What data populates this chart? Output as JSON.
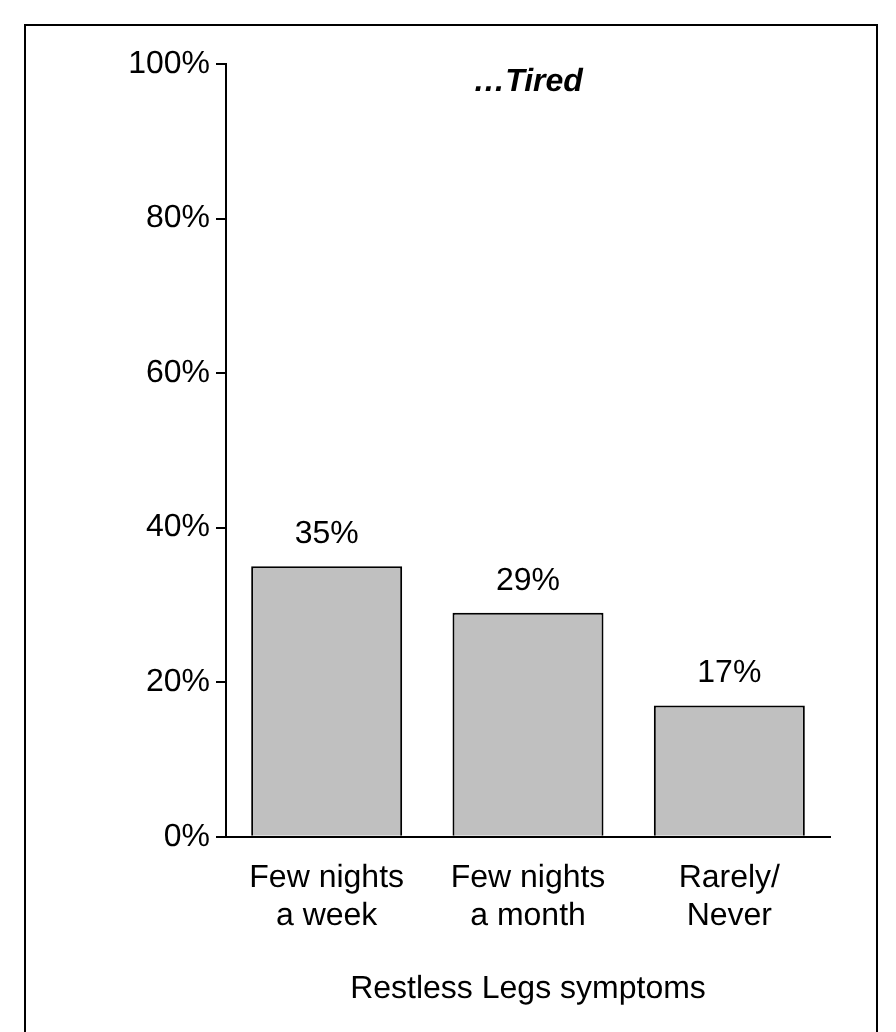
{
  "chart_data": {
    "type": "bar",
    "title": "…Tired",
    "xlabel": "Restless Legs symptoms",
    "categories": [
      "Few nights a week",
      "Few nights a month",
      "Rarely/ Never"
    ],
    "values": [
      35,
      29,
      17
    ],
    "color": "#c0c0c0",
    "ylim": [
      0,
      100
    ],
    "yticks": [
      {
        "value": 0,
        "label": "0%"
      },
      {
        "value": 20,
        "label": "20%"
      },
      {
        "value": 40,
        "label": "40%"
      },
      {
        "value": 60,
        "label": "60%"
      },
      {
        "value": 80,
        "label": "80%"
      },
      {
        "value": 100,
        "label": "100%"
      }
    ],
    "value_labels": [
      "35%",
      "29%",
      "17%"
    ],
    "grid": false,
    "legend": false
  }
}
